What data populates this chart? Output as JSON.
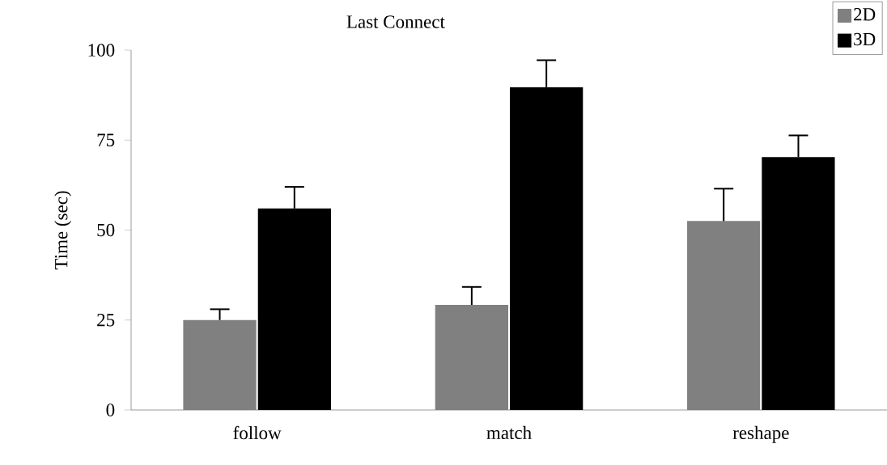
{
  "chart_data": {
    "type": "bar",
    "title": "Last Connect",
    "ylabel": "Time (sec)",
    "categories": [
      "follow",
      "match",
      "reshape"
    ],
    "series": [
      {
        "name": "2D",
        "color": "#808080",
        "values": [
          25,
          29.2,
          52.5
        ],
        "errors": [
          3,
          5,
          9
        ]
      },
      {
        "name": "3D",
        "color": "#000000",
        "values": [
          56,
          89.7,
          70.3
        ],
        "errors": [
          6,
          7.5,
          6
        ]
      }
    ],
    "ylim": [
      0,
      100
    ],
    "yticks": [
      0,
      25,
      50,
      75,
      100
    ],
    "grid": false,
    "legend": "top right"
  }
}
